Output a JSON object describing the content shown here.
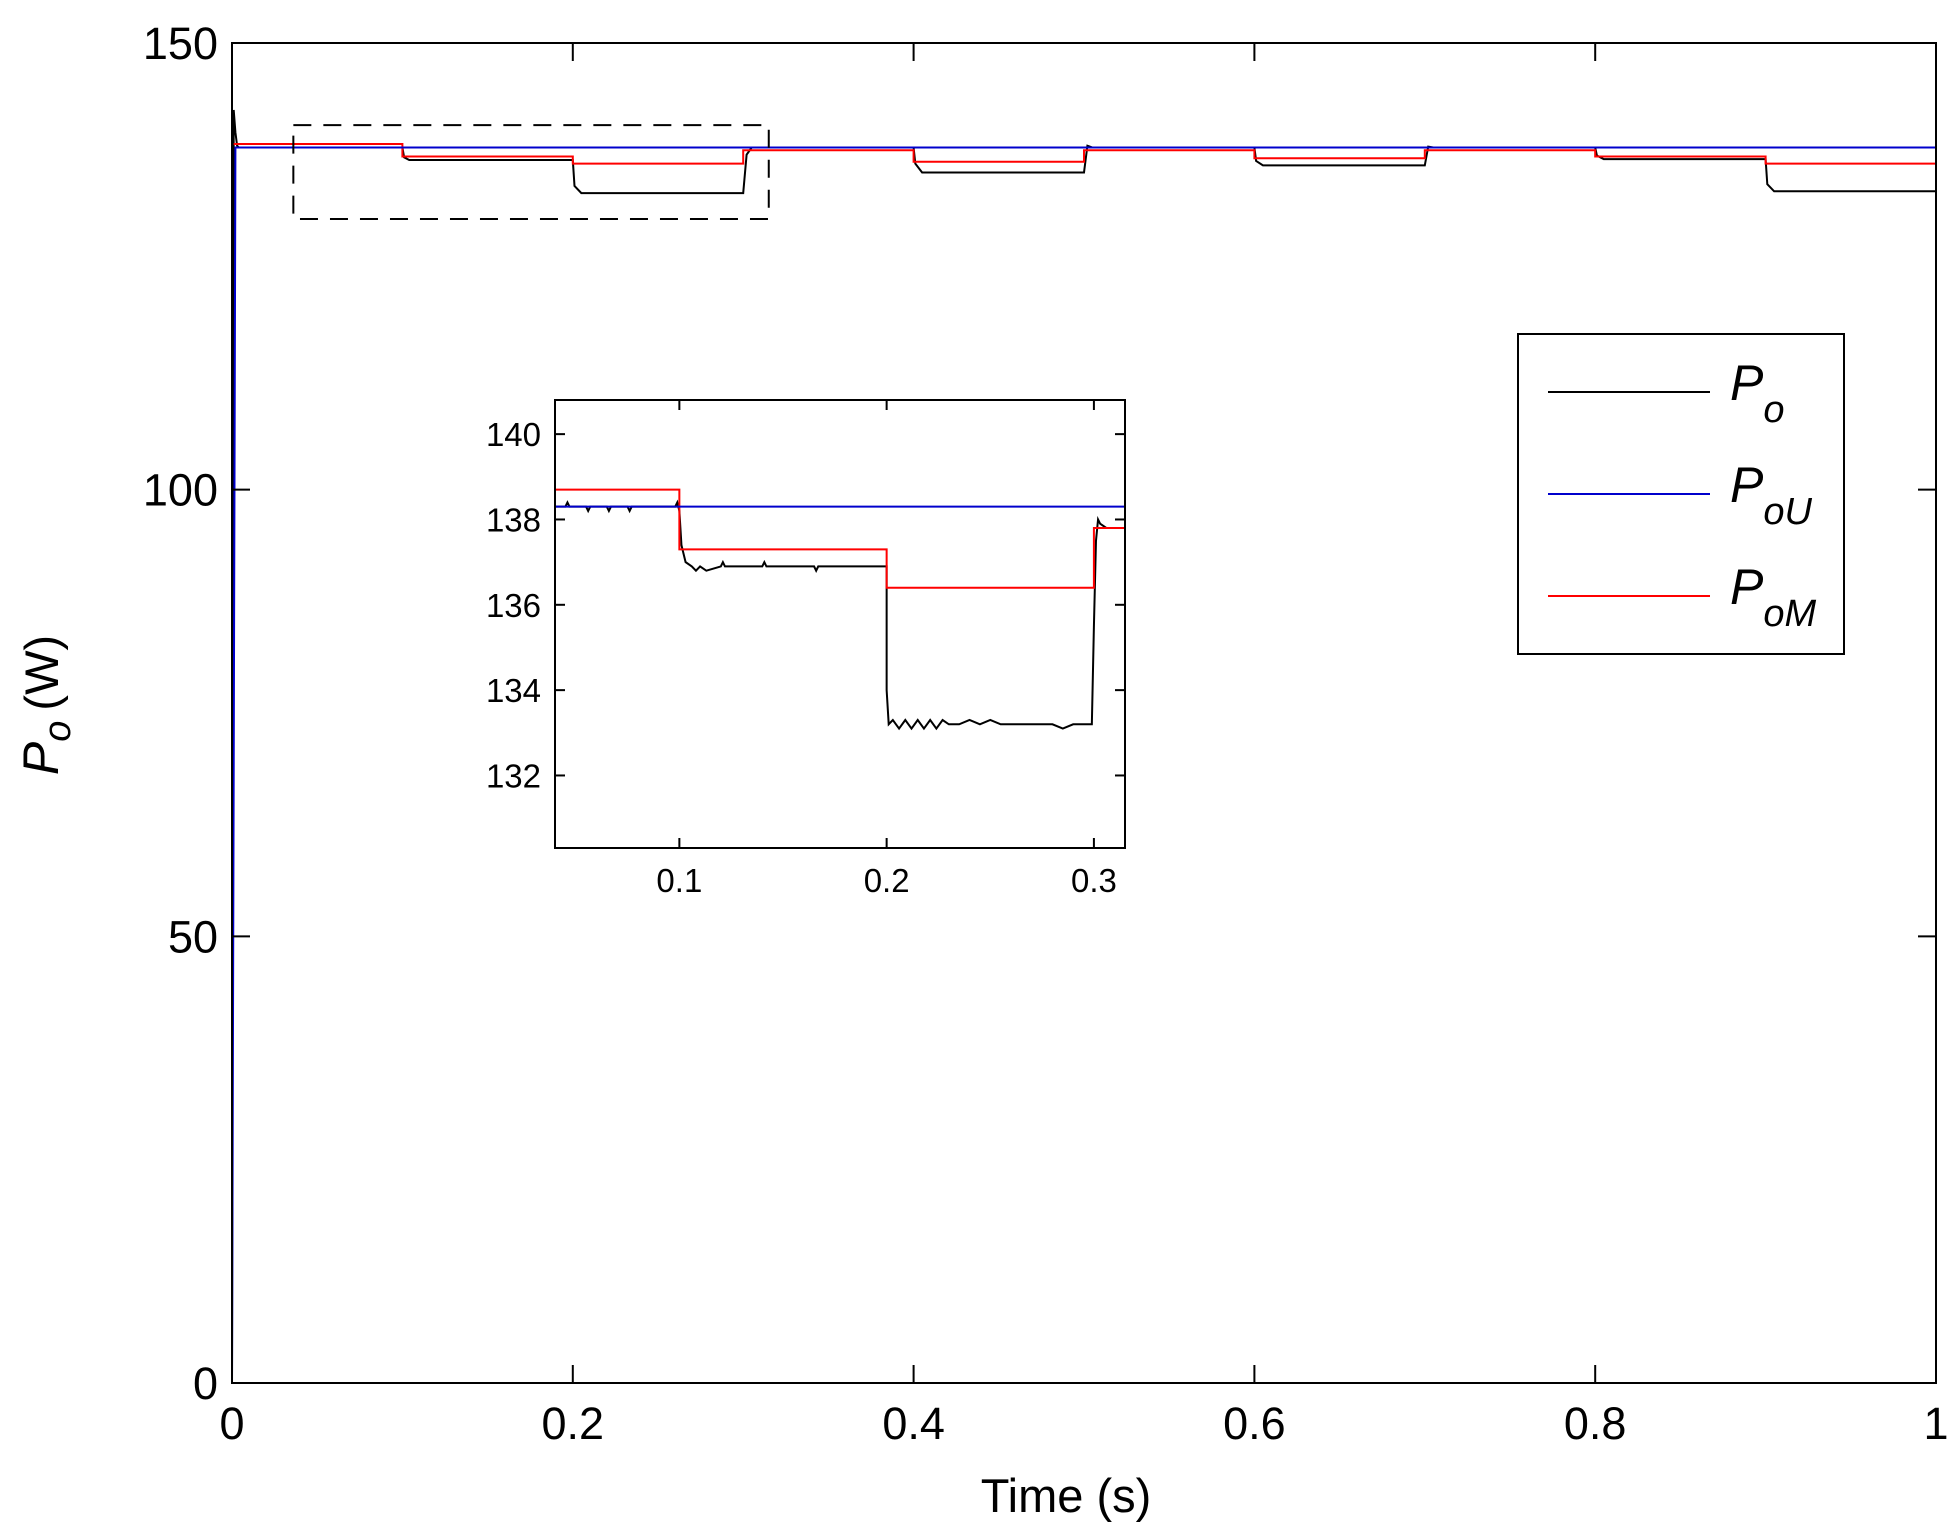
{
  "chart_data": [
    {
      "id": "main",
      "type": "line",
      "xlabel": "Time (s)",
      "ylabel": {
        "symbol": "P",
        "subscript": "o",
        "unit": "(W)"
      },
      "xlim": [
        0,
        1
      ],
      "ylim": [
        0,
        150
      ],
      "xticks": [
        0,
        0.2,
        0.4,
        0.6,
        0.8,
        1
      ],
      "xtick_labels": [
        "0",
        "0.2",
        "0.4",
        "0.6",
        "0.8",
        "1"
      ],
      "yticks": [
        0,
        50,
        100,
        150
      ],
      "ytick_labels": [
        "0",
        "50",
        "100",
        "150"
      ],
      "grid": false,
      "legend": {
        "placement": "right",
        "entries": [
          {
            "symbol": "P",
            "subscript": "o",
            "color": "#000000"
          },
          {
            "symbol": "P",
            "subscript": "oU",
            "color": "#0000cc"
          },
          {
            "symbol": "P",
            "subscript": "oM",
            "color": "#ff0000"
          }
        ]
      },
      "zoom_box": {
        "x": [
          0.036,
          0.315
        ],
        "y": [
          130.3,
          140.8
        ]
      },
      "series": [
        {
          "name": "Po",
          "color": "#000000",
          "x": [
            0,
            0.001,
            0.002,
            0.003,
            0.004,
            0.1,
            0.101,
            0.104,
            0.2,
            0.201,
            0.205,
            0.3,
            0.302,
            0.305,
            0.4,
            0.401,
            0.405,
            0.5,
            0.502,
            0.505,
            0.6,
            0.601,
            0.605,
            0.7,
            0.702,
            0.705,
            0.8,
            0.801,
            0.805,
            0.9,
            0.901,
            0.905,
            1.0
          ],
          "y": [
            0,
            142.5,
            140,
            138.5,
            138.3,
            138.3,
            137.2,
            136.9,
            136.9,
            134,
            133.2,
            133.2,
            137.5,
            138.3,
            138.3,
            136.5,
            135.5,
            135.5,
            138.5,
            138.3,
            138.3,
            136.8,
            136.3,
            136.3,
            138.4,
            138.3,
            138.3,
            137.4,
            137.0,
            137.0,
            134.2,
            133.4,
            133.4
          ]
        },
        {
          "name": "PoU",
          "color": "#0000cc",
          "x": [
            0,
            0.002,
            1.0
          ],
          "y": [
            0,
            138.3,
            138.3
          ]
        },
        {
          "name": "PoM",
          "color": "#ff0000",
          "x": [
            0.001,
            0.1,
            0.1,
            0.2,
            0.2,
            0.3,
            0.3,
            0.4,
            0.4,
            0.5,
            0.5,
            0.6,
            0.6,
            0.7,
            0.7,
            0.8,
            0.8,
            0.9,
            0.9,
            1.0
          ],
          "y": [
            138.7,
            138.7,
            137.3,
            137.3,
            136.5,
            136.5,
            138.0,
            138.0,
            136.7,
            136.7,
            138.0,
            138.0,
            137.1,
            137.1,
            138.0,
            138.0,
            137.3,
            137.3,
            136.5,
            136.5
          ]
        }
      ]
    },
    {
      "id": "inset",
      "type": "line",
      "xlim": [
        0.04,
        0.315
      ],
      "ylim": [
        130.3,
        140.8
      ],
      "xticks": [
        0.1,
        0.2,
        0.3
      ],
      "xtick_labels": [
        "0.1",
        "0.2",
        "0.3"
      ],
      "yticks": [
        132,
        134,
        136,
        138,
        140
      ],
      "ytick_labels": [
        "132",
        "134",
        "136",
        "138",
        "140"
      ],
      "grid": false,
      "series": [
        {
          "name": "Po",
          "color": "#000000",
          "x": [
            0.04,
            0.045,
            0.046,
            0.047,
            0.055,
            0.056,
            0.057,
            0.065,
            0.066,
            0.067,
            0.075,
            0.076,
            0.077,
            0.098,
            0.099,
            0.1,
            0.101,
            0.103,
            0.106,
            0.108,
            0.11,
            0.113,
            0.12,
            0.121,
            0.122,
            0.14,
            0.141,
            0.142,
            0.165,
            0.166,
            0.167,
            0.2,
            0.2,
            0.201,
            0.203,
            0.206,
            0.209,
            0.212,
            0.215,
            0.218,
            0.221,
            0.224,
            0.227,
            0.23,
            0.235,
            0.24,
            0.245,
            0.25,
            0.255,
            0.26,
            0.27,
            0.28,
            0.285,
            0.29,
            0.295,
            0.299,
            0.3,
            0.301,
            0.302,
            0.303,
            0.306,
            0.315
          ],
          "y": [
            138.3,
            138.3,
            138.4,
            138.3,
            138.3,
            138.2,
            138.3,
            138.3,
            138.2,
            138.3,
            138.3,
            138.2,
            138.3,
            138.3,
            138.4,
            138.2,
            137.4,
            137.0,
            136.9,
            136.8,
            136.9,
            136.8,
            136.9,
            137.0,
            136.9,
            136.9,
            137.0,
            136.9,
            136.9,
            136.8,
            136.9,
            136.9,
            134.0,
            133.2,
            133.3,
            133.1,
            133.3,
            133.1,
            133.3,
            133.1,
            133.3,
            133.1,
            133.3,
            133.2,
            133.2,
            133.3,
            133.2,
            133.3,
            133.2,
            133.2,
            133.2,
            133.2,
            133.1,
            133.2,
            133.2,
            133.2,
            135.5,
            137.5,
            138.0,
            137.9,
            137.8,
            137.8
          ]
        },
        {
          "name": "PoU",
          "color": "#0000cc",
          "x": [
            0.04,
            0.315
          ],
          "y": [
            138.3,
            138.3
          ]
        },
        {
          "name": "PoM",
          "color": "#ff0000",
          "x": [
            0.04,
            0.1,
            0.1,
            0.2,
            0.2,
            0.3,
            0.3,
            0.315
          ],
          "y": [
            138.7,
            138.7,
            137.3,
            137.3,
            136.4,
            136.4,
            137.8,
            137.8
          ]
        }
      ]
    }
  ]
}
